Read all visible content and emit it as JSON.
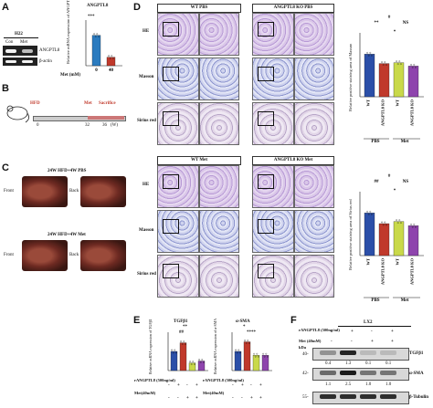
{
  "panelA": {
    "letter": "A",
    "blot_header": "H22",
    "lane_con": "Con",
    "lane_met": "Met",
    "band1": "ANGPTL8",
    "band2": "β-actin",
    "chart_title": "ANGPTL8",
    "ylabel": "Relative mRNA expression of ANGPTL8",
    "xaxis_label": "Met (mM)",
    "sig": "***"
  },
  "panelB": {
    "letter": "B",
    "hfd": "HFD",
    "met": "Met",
    "sacrifice": "Sacrifice",
    "t0": "0",
    "t1": "32",
    "t2": "36",
    "unit": "(W)"
  },
  "panelC": {
    "letter": "C",
    "top_label": "24W HFD+4W PBS",
    "bottom_label": "24W HFD+4W Met",
    "front": "Front",
    "back": "Back"
  },
  "panelD": {
    "letter": "D",
    "top_wt": "WT PBS",
    "top_ko": "ANGPTL8 KO PBS",
    "bot_wt": "WT Met",
    "bot_ko": "ANGPTL8 KO Met",
    "row_he": "HE",
    "row_masson": "Masson",
    "row_sirius": "Sirius red",
    "bar1_ylabel": "Relative positive staining area of Masson",
    "bar2_ylabel": "Relative positive staining area of Sirius red",
    "bar_cats": [
      "WT",
      "ANGPTL8 KO",
      "WT",
      "ANGPTL8 KO"
    ],
    "group_pbs": "PBS",
    "group_met": "Met",
    "ns": "NS",
    "sig1": "*",
    "sig2": "**",
    "sig3": "#",
    "sig4": "##"
  },
  "panelE": {
    "letter": "E",
    "title1": "TGFβ1",
    "title2": "α-SMA",
    "ylabel1": "Relative mRNA expression of TGFβ1",
    "ylabel2": "Relative mRNA expression of α-SMA",
    "row1": "rANGPTL8 (500ng/ml)",
    "row2": "Met(40mM)",
    "plus": "+",
    "minus": "-",
    "sig_a": "**",
    "sig_b": "##",
    "sig_c": "****",
    "sig_d": "*"
  },
  "panelF": {
    "letter": "F",
    "cell": "LX2",
    "row1": "rANGPTL8 (500ng/ml)",
    "row2": "Met (40mM)",
    "kda": "kDa",
    "marker40": "40-",
    "marker42": "42-",
    "marker55": "55-",
    "band1": "TGFβ1",
    "band2": "α-SMA",
    "band3": "β-Tubulin",
    "q1": [
      "0.4",
      "1.3",
      "0.1",
      "0.1"
    ],
    "q2": [
      "1.1",
      "2.5",
      "1.0",
      "1.0"
    ],
    "signs_r": [
      "-",
      "+",
      "-",
      "+"
    ],
    "signs_m": [
      "-",
      "-",
      "+",
      "+"
    ]
  },
  "chart_data": [
    {
      "type": "bar",
      "panel": "A",
      "title": "ANGPTL8",
      "categories": [
        "0",
        "40"
      ],
      "values": [
        1.0,
        0.28
      ],
      "xlabel": "Met (mM)",
      "ylabel": "Relative mRNA expression of ANGPTL8",
      "ylim": [
        0,
        1.5
      ],
      "colors": [
        "#2b7bbf",
        "#c0392b"
      ]
    },
    {
      "type": "bar",
      "panel": "D-top",
      "categories": [
        "WT",
        "ANGPTL8 KO",
        "WT",
        "ANGPTL8 KO"
      ],
      "values": [
        1.0,
        0.78,
        0.8,
        0.72
      ],
      "ylabel": "Relative positive staining area of Masson",
      "ylim": [
        0,
        1.5
      ],
      "colors": [
        "#2b4fa8",
        "#c0392b",
        "#c9d94a",
        "#8e44ad"
      ]
    },
    {
      "type": "bar",
      "panel": "D-bottom",
      "categories": [
        "WT",
        "ANGPTL8 KO",
        "WT",
        "ANGPTL8 KO"
      ],
      "values": [
        1.0,
        0.75,
        0.8,
        0.7
      ],
      "ylabel": "Relative positive staining area of Sirius red",
      "ylim": [
        0,
        1.5
      ],
      "colors": [
        "#2b4fa8",
        "#c0392b",
        "#c9d94a",
        "#8e44ad"
      ]
    },
    {
      "type": "bar",
      "panel": "E-left",
      "title": "TGFβ1",
      "values": [
        1.0,
        1.45,
        0.4,
        0.5
      ],
      "ylim": [
        0,
        2
      ],
      "colors": [
        "#2b4fa8",
        "#c0392b",
        "#c9d94a",
        "#8e44ad"
      ]
    },
    {
      "type": "bar",
      "panel": "E-right",
      "title": "α-SMA",
      "values": [
        1.0,
        1.5,
        0.8,
        0.8
      ],
      "ylim": [
        0,
        2
      ],
      "colors": [
        "#2b4fa8",
        "#c0392b",
        "#c9d94a",
        "#8e44ad"
      ]
    }
  ]
}
